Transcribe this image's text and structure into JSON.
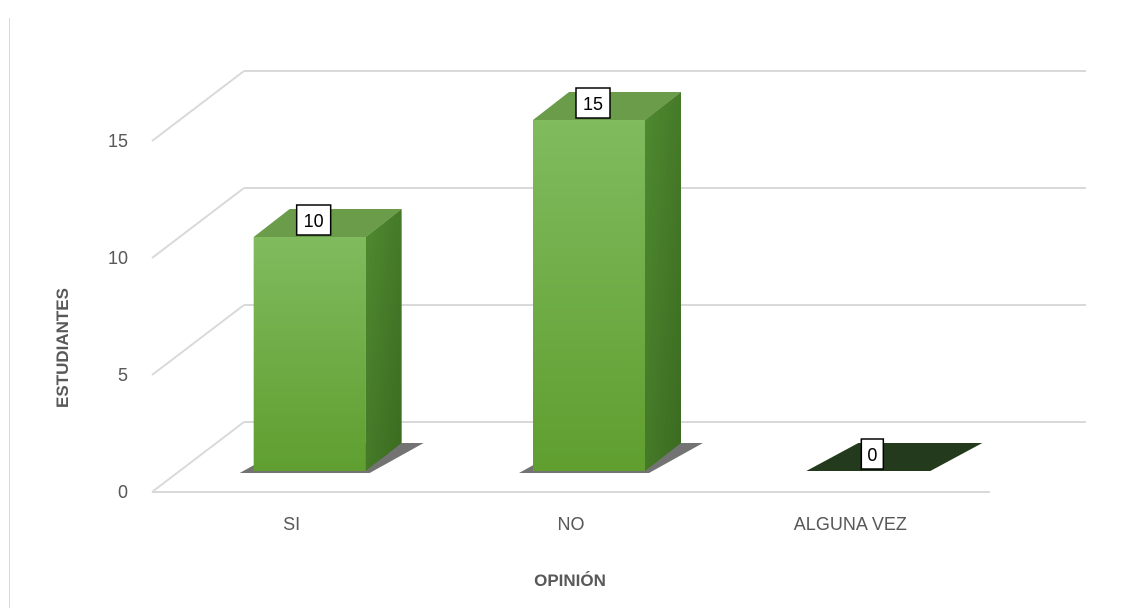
{
  "chart_data": {
    "type": "bar",
    "categories": [
      "SI",
      "NO",
      "ALGUNA VEZ"
    ],
    "values": [
      10,
      15,
      0
    ],
    "data_labels": [
      "10",
      "15",
      "0"
    ],
    "title": "",
    "xlabel": "OPINIÓN",
    "ylabel": "ESTUDIANTES",
    "ylim": [
      0,
      15
    ],
    "yticks": [
      0,
      5,
      10,
      15
    ],
    "ytick_labels": [
      "0",
      "5",
      "10",
      "15"
    ],
    "grid": true,
    "legend": "none",
    "style": "3d-column",
    "colors": {
      "bar_front_top": "#80bb5e",
      "bar_front_bottom": "#5f9e2f",
      "bar_side": "#467a28",
      "bar_top": "#6a9c4a",
      "zero_bar": "#243a1c",
      "gridline": "#d9d9d9",
      "axis_text": "#595959"
    }
  }
}
